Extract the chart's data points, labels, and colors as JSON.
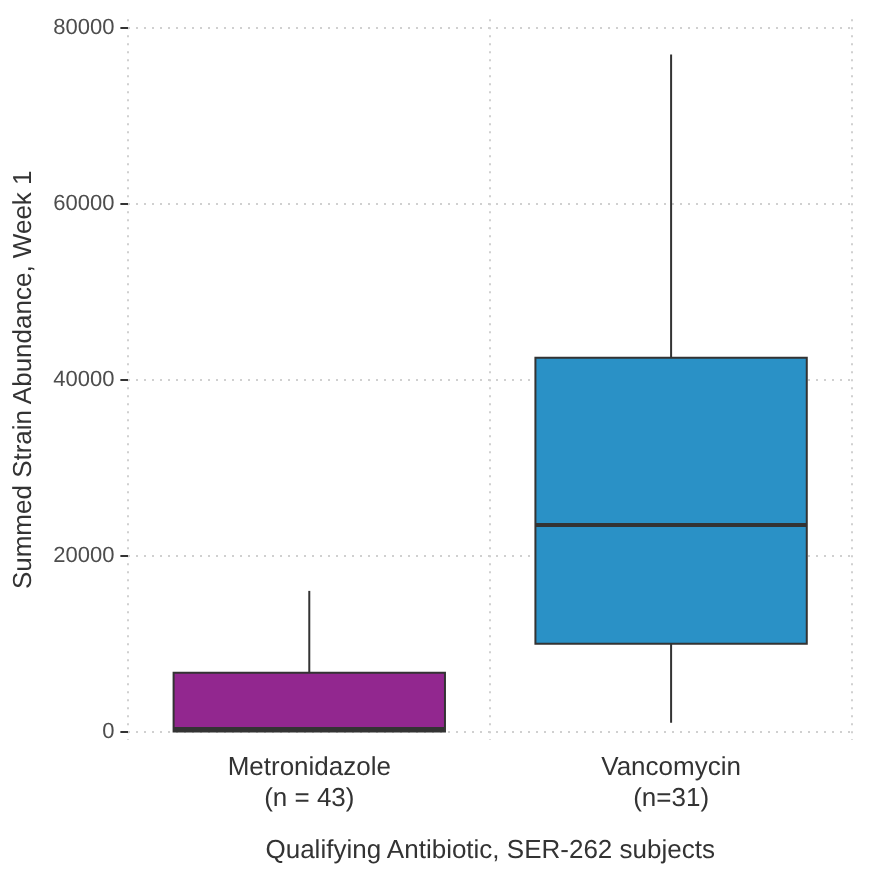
{
  "chart_data": {
    "type": "box",
    "xlabel": "Qualifying Antibiotic, SER-262 subjects",
    "ylabel": "Summed Strain Abundance, Week 1",
    "categories": [
      "Metronidazole\n(n = 43)",
      "Vancomycin\n(n=31)"
    ],
    "colors": [
      "#92278f",
      "#2a91c6"
    ],
    "boxes": [
      {
        "low": 0,
        "q1": 0,
        "median": 300,
        "q3": 6700,
        "high": 16000
      },
      {
        "low": 1000,
        "q1": 10000,
        "median": 23500,
        "q3": 42500,
        "high": 77000
      }
    ],
    "ylim": [
      -1000,
      81000
    ],
    "yticks": [
      0,
      20000,
      40000,
      60000,
      80000
    ],
    "grid": true
  }
}
